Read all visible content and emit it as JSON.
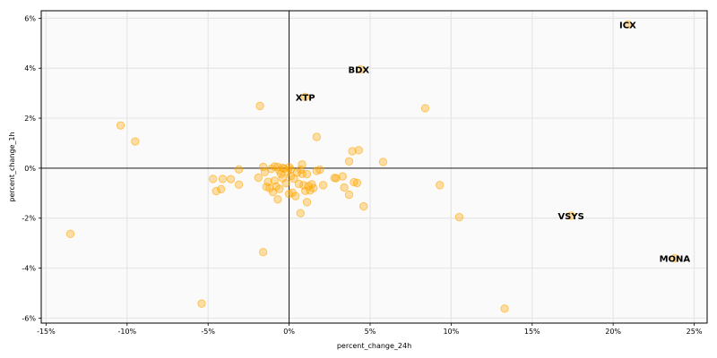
{
  "chart_data": {
    "type": "scatter",
    "title": "",
    "xlabel": "percent_change_24h",
    "ylabel": "percent_change_1h",
    "xlim": [
      -0.153,
      0.258
    ],
    "ylim": [
      -0.062,
      0.063
    ],
    "x_ticks": [
      -0.15,
      -0.1,
      -0.05,
      0,
      0.05,
      0.1,
      0.15,
      0.2,
      0.25
    ],
    "x_tick_labels": [
      "-15%",
      "-10%",
      "-5%",
      "0%",
      "5%",
      "10%",
      "15%",
      "20%",
      "25%"
    ],
    "y_ticks": [
      -0.06,
      -0.04,
      -0.02,
      0,
      0.02,
      0.04,
      0.06
    ],
    "y_tick_labels": [
      "-6%",
      "-4%",
      "-2%",
      "0%",
      "2%",
      "4%",
      "6%"
    ],
    "grid": true,
    "reference_lines": {
      "x": 0,
      "y": 0
    },
    "point_color": "#ffa500",
    "plot_background": "#fafafa",
    "grid_color": "#e6e6e6",
    "points": [
      {
        "x": 0.209,
        "y": 0.0575
      },
      {
        "x": 0.044,
        "y": 0.0395
      },
      {
        "x": 0.01,
        "y": 0.0285
      },
      {
        "x": 0.174,
        "y": -0.019
      },
      {
        "x": 0.238,
        "y": -0.036
      },
      {
        "x": -0.104,
        "y": 0.0171
      },
      {
        "x": -0.095,
        "y": 0.0107
      },
      {
        "x": -0.018,
        "y": 0.0249
      },
      {
        "x": 0.084,
        "y": 0.024
      },
      {
        "x": 0.017,
        "y": 0.0125
      },
      {
        "x": 0.039,
        "y": 0.0068
      },
      {
        "x": 0.043,
        "y": 0.0072
      },
      {
        "x": 0.058,
        "y": 0.0025
      },
      {
        "x": 0.037,
        "y": 0.0027
      },
      {
        "x": 0.093,
        "y": -0.0068
      },
      {
        "x": 0.105,
        "y": -0.0196
      },
      {
        "x": -0.135,
        "y": -0.0263
      },
      {
        "x": -0.054,
        "y": -0.0542
      },
      {
        "x": 0.133,
        "y": -0.0562
      },
      {
        "x": -0.016,
        "y": -0.0336
      },
      {
        "x": 0.007,
        "y": -0.018
      },
      {
        "x": 0.046,
        "y": -0.0153
      },
      {
        "x": 0.011,
        "y": -0.0136
      },
      {
        "x": -0.007,
        "y": -0.0125
      },
      {
        "x": 0.037,
        "y": -0.0106
      },
      {
        "x": -0.031,
        "y": -0.0066
      },
      {
        "x": -0.031,
        "y": -0.0005
      },
      {
        "x": -0.036,
        "y": -0.0044
      },
      {
        "x": -0.041,
        "y": -0.0043
      },
      {
        "x": -0.047,
        "y": -0.0043
      },
      {
        "x": -0.045,
        "y": -0.0092
      },
      {
        "x": -0.042,
        "y": -0.0084
      },
      {
        "x": -0.019,
        "y": -0.0038
      },
      {
        "x": -0.016,
        "y": 0.0005
      },
      {
        "x": -0.015,
        "y": -0.0016
      },
      {
        "x": -0.013,
        "y": -0.0055
      },
      {
        "x": -0.012,
        "y": -0.008
      },
      {
        "x": -0.01,
        "y": -0.0096
      },
      {
        "x": -0.008,
        "y": -0.0073
      },
      {
        "x": -0.007,
        "y": 0.0005
      },
      {
        "x": -0.006,
        "y": -0.001
      },
      {
        "x": -0.005,
        "y": -0.0023
      },
      {
        "x": -0.004,
        "y": -0.004
      },
      {
        "x": -0.003,
        "y": -0.0002
      },
      {
        "x": -0.002,
        "y": -0.006
      },
      {
        "x": -0.001,
        "y": -0.0013
      },
      {
        "x": 0.0,
        "y": 0.0004
      },
      {
        "x": 0.001,
        "y": -0.0032
      },
      {
        "x": 0.002,
        "y": -0.0098
      },
      {
        "x": 0.003,
        "y": -0.0042
      },
      {
        "x": 0.004,
        "y": -0.0112
      },
      {
        "x": 0.005,
        "y": -0.0017
      },
      {
        "x": 0.006,
        "y": -0.0063
      },
      {
        "x": 0.008,
        "y": 0.0015
      },
      {
        "x": 0.008,
        "y": -0.0023
      },
      {
        "x": 0.009,
        "y": -0.0068
      },
      {
        "x": 0.01,
        "y": -0.0091
      },
      {
        "x": 0.011,
        "y": -0.0024
      },
      {
        "x": 0.012,
        "y": -0.0072
      },
      {
        "x": 0.013,
        "y": -0.0089
      },
      {
        "x": 0.014,
        "y": -0.0064
      },
      {
        "x": 0.017,
        "y": -0.0011
      },
      {
        "x": 0.019,
        "y": -0.0006
      },
      {
        "x": 0.021,
        "y": -0.0068
      },
      {
        "x": 0.028,
        "y": -0.0039
      },
      {
        "x": 0.033,
        "y": -0.0033
      },
      {
        "x": 0.034,
        "y": -0.0077
      },
      {
        "x": 0.04,
        "y": -0.0056
      },
      {
        "x": 0.042,
        "y": -0.0059
      },
      {
        "x": -0.009,
        "y": 0.0007
      },
      {
        "x": -0.011,
        "y": -0.0003
      },
      {
        "x": -0.006,
        "y": -0.0083
      },
      {
        "x": 0.0,
        "y": -0.0103
      },
      {
        "x": 0.015,
        "y": -0.008
      },
      {
        "x": -0.014,
        "y": -0.0075
      },
      {
        "x": -0.004,
        "y": 0.0001
      },
      {
        "x": 0.001,
        "y": -0.0005
      },
      {
        "x": 0.007,
        "y": -0.0006
      },
      {
        "x": 0.029,
        "y": -0.004
      },
      {
        "x": -0.009,
        "y": -0.005
      }
    ],
    "annotations": [
      {
        "text": "ICX",
        "x": 0.209,
        "y": 0.0575
      },
      {
        "text": "BDX",
        "x": 0.043,
        "y": 0.0395
      },
      {
        "text": "XTP",
        "x": 0.01,
        "y": 0.0285
      },
      {
        "text": "VSYS",
        "x": 0.174,
        "y": -0.019
      },
      {
        "text": "MONA",
        "x": 0.238,
        "y": -0.036
      }
    ]
  }
}
